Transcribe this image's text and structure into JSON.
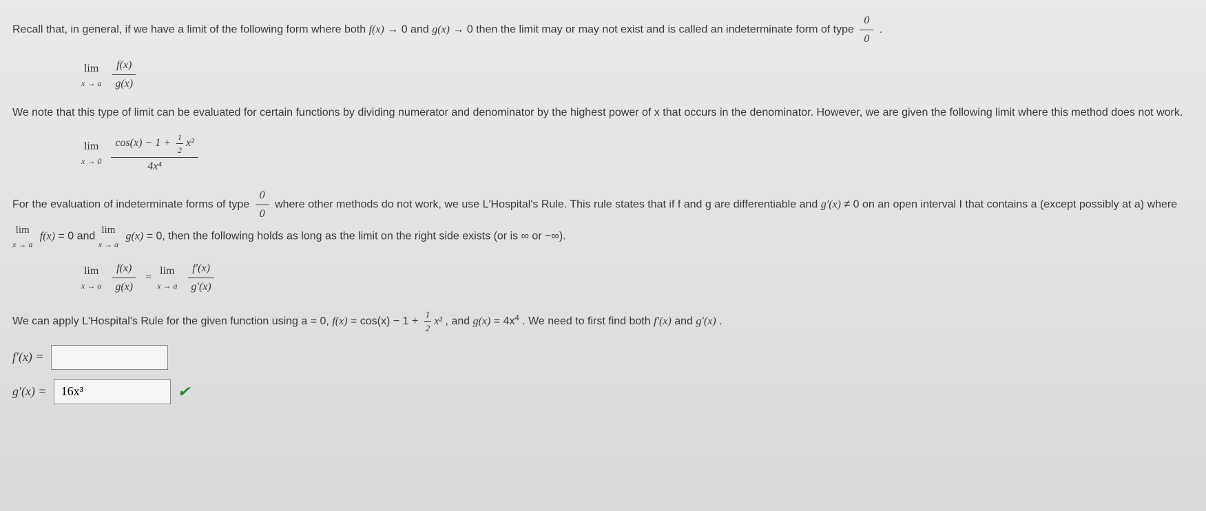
{
  "text": {
    "p1_a": "Recall that, in general, if we have a limit of the following form where both ",
    "p1_b": " → 0 and ",
    "p1_c": " → 0 then the limit may or may not exist and is called an indeterminate form of type ",
    "p1_d": ".",
    "fx": "f(x)",
    "gx": "g(x)",
    "p2": "We note that this type of limit can be evaluated for certain functions by dividing numerator and denominator by the highest power of x that occurs in the denominator. However, we are given the following limit where this method does not work.",
    "p3_a": "For the evaluation of indeterminate forms of type ",
    "p3_b": " where other methods do not work, we use L'Hospital's Rule. This rule states that if f and g are differentiable and ",
    "p3_c": " ≠ 0 on an open interval I that contains a (except possibly at a) where ",
    "p3_d": " = 0 and ",
    "p3_e": " = 0, then the following holds as long as the limit on the right side exists (or is ∞ or −∞).",
    "gprime": "g′(x)",
    "fprime": "f′(x)",
    "lim": "lim",
    "lim_sub_a": "x → a",
    "lim_sub_0": "x → 0",
    "p4_a": "We can apply L'Hospital's Rule for the given function using a = 0, ",
    "p4_b": " = cos(x) − 1 + ",
    "p4_c": ", and ",
    "p4_d": " = 4x",
    "p4_e": ". We need to first find both ",
    "p4_f": " and ",
    "p4_g": ".",
    "half": "1",
    "two": "2",
    "xsq": "x²",
    "four": "4",
    "fprime_label": "f′(x) =",
    "gprime_label": "g′(x) =",
    "gprime_value": "16x³",
    "fprime_value": "",
    "frac0_num": "0",
    "frac0_den": "0",
    "cos_expr_num_a": "cos(x) − 1 + ",
    "cos_expr_den": "4x⁴",
    "lim_fx": "f(x)",
    "lim_gx": "g(x)"
  },
  "colors": {
    "text": "#3a3a3a",
    "border": "#888888",
    "input_bg": "#f5f5f7",
    "check": "#2a8a2a",
    "bg_top": "#e8e9eb",
    "bg_bottom": "#d8d9db"
  }
}
